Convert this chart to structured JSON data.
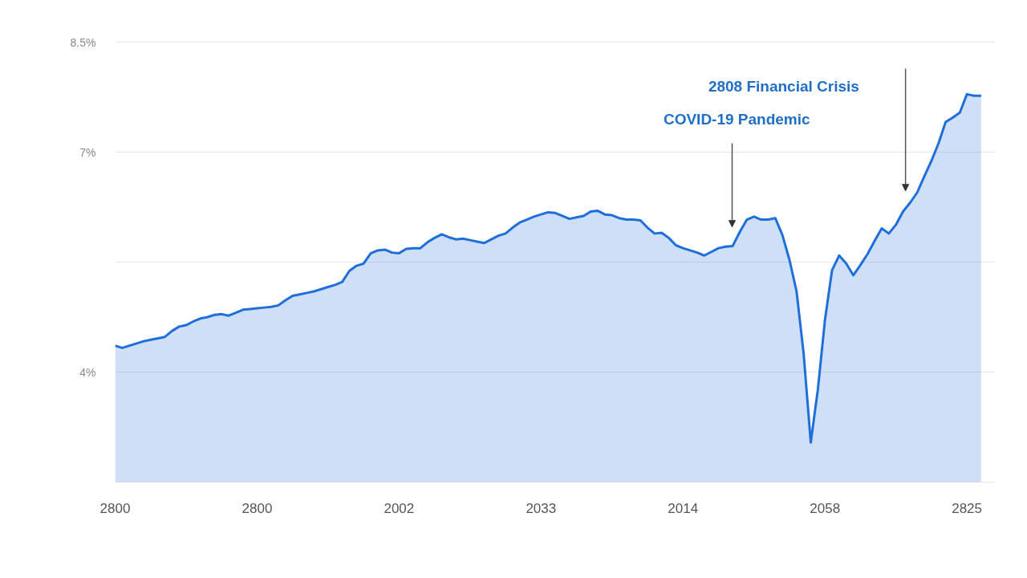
{
  "chart_data": {
    "type": "area",
    "color": "#1e6fd9",
    "categories": [
      "2800",
      null,
      null,
      null,
      null,
      null,
      null,
      null,
      null,
      null,
      null,
      null,
      null,
      null,
      null,
      null,
      null,
      null,
      null,
      null,
      "2800",
      null,
      null,
      null,
      null,
      null,
      null,
      null,
      null,
      null,
      null,
      null,
      null,
      null,
      null,
      null,
      null,
      null,
      null,
      null,
      "2002",
      null,
      null,
      null,
      null,
      null,
      null,
      null,
      null,
      null,
      null,
      null,
      null,
      null,
      null,
      null,
      null,
      null,
      null,
      null,
      "2033",
      null,
      null,
      null,
      null,
      null,
      null,
      null,
      null,
      null,
      null,
      null,
      null,
      null,
      null,
      null,
      null,
      null,
      null,
      null,
      "2014",
      null,
      null,
      null,
      null,
      null,
      null,
      null,
      null,
      null,
      null,
      null,
      null,
      null,
      null,
      null,
      null,
      null,
      null,
      null,
      "2058",
      null,
      null,
      null,
      null,
      null,
      null,
      null,
      null,
      null,
      null,
      null,
      null,
      null,
      null,
      null,
      null,
      null,
      null,
      null,
      "2825",
      null,
      null
    ],
    "values": [
      4.36,
      4.33,
      4.36,
      4.39,
      4.42,
      4.44,
      4.46,
      4.48,
      4.56,
      4.62,
      4.64,
      4.69,
      4.73,
      4.75,
      4.78,
      4.79,
      4.77,
      4.81,
      4.85,
      4.86,
      4.87,
      4.88,
      4.89,
      4.91,
      4.98,
      5.04,
      5.06,
      5.08,
      5.1,
      5.13,
      5.16,
      5.19,
      5.23,
      5.38,
      5.45,
      5.48,
      5.62,
      5.66,
      5.67,
      5.63,
      5.62,
      5.68,
      5.69,
      5.69,
      5.77,
      5.83,
      5.88,
      5.84,
      5.81,
      5.82,
      5.8,
      5.78,
      5.76,
      5.81,
      5.86,
      5.89,
      5.97,
      6.04,
      6.08,
      6.12,
      6.15,
      6.18,
      6.17,
      6.13,
      6.09,
      6.11,
      6.13,
      6.19,
      6.2,
      6.15,
      6.14,
      6.1,
      6.08,
      6.08,
      6.07,
      5.97,
      5.89,
      5.9,
      5.83,
      5.73,
      5.69,
      5.66,
      5.63,
      5.59,
      5.64,
      5.69,
      5.71,
      5.72,
      5.91,
      6.08,
      6.12,
      6.08,
      6.08,
      6.1,
      5.87,
      5.53,
      5.1,
      4.25,
      3.04,
      3.76,
      4.71,
      5.39,
      5.59,
      5.48,
      5.32,
      5.46,
      5.61,
      5.79,
      5.96,
      5.89,
      6.01,
      6.19,
      6.31,
      6.45,
      6.67,
      6.88,
      7.12,
      7.41,
      7.47,
      7.54,
      7.79,
      7.77,
      7.77
    ],
    "ylim": [
      2.5,
      8.5
    ],
    "yticks": [
      {
        "value": 8.5,
        "label": "8.5%"
      },
      {
        "value": 7,
        "label": "7%"
      },
      {
        "value": 5.5,
        "label": null
      },
      {
        "value": 4,
        "label": "4%"
      },
      {
        "value": 2.5,
        "label": null
      }
    ],
    "grid": "y",
    "annotations": [
      "2808 Financial Crisis",
      "COVID-19 Pandemic"
    ]
  }
}
